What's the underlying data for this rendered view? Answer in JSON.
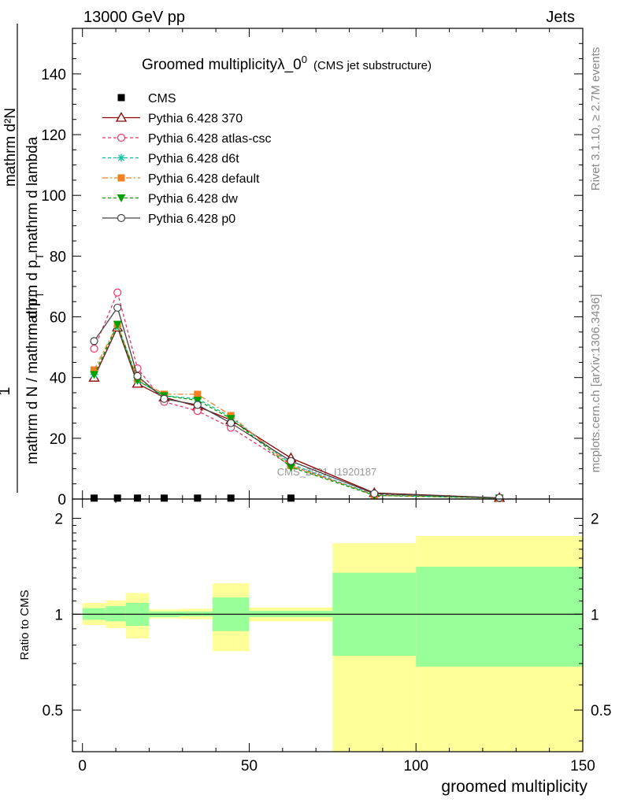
{
  "header": {
    "left": "13000 GeV pp",
    "right": "Jets"
  },
  "side_labels": {
    "rivet": "Rivet 3.1.10, ≥ 2.7M events",
    "mcplots": "mcplots.cern.ch [arXiv:1306.3436]"
  },
  "chart_data": [
    {
      "type": "line",
      "title": "Groomed multiplicityλ_0",
      "title_sup": "0",
      "subtitle": "(CMS jet substructure)",
      "watermark": "CMS_2021_I1920187",
      "ylabel_top": "1",
      "ylabel_top_frac": "mathrm d²N",
      "ylabel_bottom_top": "mathrm d N / mathrm d p",
      "ylabel_bottom_bottom": "mathrm d p",
      "ylabel_bottom_tail": "mathrm d lambda",
      "ylabel_sub": "T",
      "xlim": [
        -3,
        150
      ],
      "ylim": [
        0,
        155
      ],
      "yticks": [
        0,
        20,
        40,
        60,
        80,
        100,
        120,
        140
      ],
      "legend_position": "top-left",
      "series": [
        {
          "name": "CMS",
          "color": "#000000",
          "marker": "square",
          "dash": "none",
          "line": false,
          "x": [
            3.5,
            10.5,
            16.5,
            24.5,
            34.5,
            44.5,
            62.5,
            125
          ],
          "y": [
            0.3,
            0.3,
            0.3,
            0.3,
            0.3,
            0.3,
            0.3,
            0.3
          ]
        },
        {
          "name": "Pythia 6.428 370",
          "color": "#8b0000",
          "marker": "triangle-open",
          "dash": "none",
          "line": true,
          "x": [
            3.5,
            10.5,
            16.5,
            24.5,
            34.5,
            44.5,
            62.5,
            87.5,
            125
          ],
          "y": [
            40,
            56.5,
            38,
            33.5,
            30.5,
            26,
            13.5,
            2,
            0.4
          ]
        },
        {
          "name": "Pythia 6.428 atlas-csc",
          "color": "#ee3366",
          "marker": "circle-open",
          "dash": "4,3",
          "line": true,
          "x": [
            3.5,
            10.5,
            16.5,
            24.5,
            34.5,
            44.5,
            62.5,
            87.5,
            125
          ],
          "y": [
            49.5,
            68,
            43,
            32,
            29,
            23.5,
            11,
            1.5,
            0.3
          ]
        },
        {
          "name": "Pythia 6.428 d6t",
          "color": "#00c0a0",
          "marker": "star",
          "dash": "4,3",
          "line": true,
          "x": [
            3.5,
            10.5,
            16.5,
            24.5,
            34.5,
            44.5,
            62.5,
            87.5,
            125
          ],
          "y": [
            41,
            57,
            39,
            34,
            33,
            27,
            11.5,
            1.3,
            0.3
          ]
        },
        {
          "name": "Pythia 6.428 default",
          "color": "#f08020",
          "marker": "square",
          "dash": "7,3,2,3",
          "line": true,
          "x": [
            3.5,
            10.5,
            16.5,
            24.5,
            34.5,
            44.5,
            62.5,
            87.5,
            125
          ],
          "y": [
            42.5,
            57.5,
            39.5,
            34.5,
            34.5,
            27.5,
            11,
            1.2,
            0.3
          ]
        },
        {
          "name": "Pythia 6.428 dw",
          "color": "#00a000",
          "marker": "triangle-down",
          "dash": "4,3",
          "line": true,
          "x": [
            3.5,
            10.5,
            16.5,
            24.5,
            34.5,
            44.5,
            62.5,
            87.5,
            125
          ],
          "y": [
            41,
            57.5,
            39,
            34,
            32.5,
            26.5,
            10.5,
            1.2,
            0.3
          ]
        },
        {
          "name": "Pythia 6.428 p0",
          "color": "#444444",
          "marker": "circle-open",
          "dash": "none",
          "line": true,
          "x": [
            3.5,
            10.5,
            16.5,
            24.5,
            34.5,
            44.5,
            62.5,
            87.5,
            125
          ],
          "y": [
            52,
            63,
            40.5,
            33,
            31,
            25,
            12.5,
            1.8,
            0.4
          ]
        }
      ]
    },
    {
      "type": "area",
      "ylabel": "Ratio to CMS",
      "xlabel": "groomed multiplicity",
      "xlim": [
        -3,
        150
      ],
      "ylim": [
        0.37,
        2.3
      ],
      "log_y": true,
      "yticks": [
        0.5,
        1,
        2
      ],
      "xticks": [
        0,
        50,
        100,
        150
      ],
      "reference": 1,
      "bins": [
        {
          "x0": 0,
          "x1": 7,
          "inner": [
            0.96,
            1.045
          ],
          "outer": [
            0.925,
            1.085
          ]
        },
        {
          "x0": 7,
          "x1": 13,
          "inner": [
            0.95,
            1.06
          ],
          "outer": [
            0.905,
            1.105
          ]
        },
        {
          "x0": 13,
          "x1": 20,
          "inner": [
            0.92,
            1.085
          ],
          "outer": [
            0.84,
            1.165
          ]
        },
        {
          "x0": 20,
          "x1": 29,
          "inner": [
            0.98,
            1.02
          ],
          "outer": [
            0.97,
            1.035
          ]
        },
        {
          "x0": 29,
          "x1": 39,
          "inner": [
            0.985,
            1.02
          ],
          "outer": [
            0.965,
            1.04
          ]
        },
        {
          "x0": 39,
          "x1": 50,
          "inner": [
            0.885,
            1.13
          ],
          "outer": [
            0.765,
            1.25
          ]
        },
        {
          "x0": 50,
          "x1": 75,
          "inner": [
            0.98,
            1.025
          ],
          "outer": [
            0.95,
            1.05
          ]
        },
        {
          "x0": 75,
          "x1": 100,
          "inner": [
            0.74,
            1.35
          ],
          "outer": [
            0.37,
            1.67
          ]
        },
        {
          "x0": 100,
          "x1": 150,
          "inner": [
            0.685,
            1.41
          ],
          "outer": [
            0.37,
            1.76
          ]
        }
      ]
    }
  ]
}
